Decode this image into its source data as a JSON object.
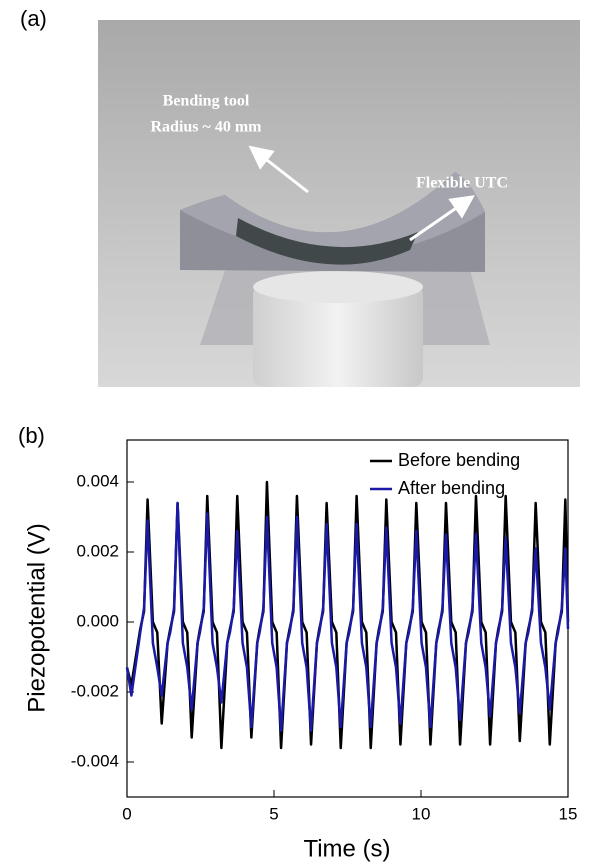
{
  "panel_a": {
    "label": "(a)",
    "annotations": [
      "Bending tool",
      "Radius ~ 40 mm",
      "Flexible UTC"
    ]
  },
  "chart_data": {
    "type": "line",
    "panel_label": "(b)",
    "x_label": "Time (s)",
    "y_label": "Piezopotential (V)",
    "xlim": [
      0,
      15
    ],
    "xticks": [
      0,
      5,
      10,
      15
    ],
    "ylim": [
      -0.005,
      0.0052
    ],
    "yticks": [
      {
        "value": 0.004,
        "label": "0.004"
      },
      {
        "value": 0.002,
        "label": "0.002"
      },
      {
        "value": 0,
        "label": "0.000"
      },
      {
        "value": -0.002,
        "label": "-0.002"
      },
      {
        "value": -0.004,
        "label": "-0.004"
      }
    ],
    "legend": "upper right",
    "x": [
      0,
      0.15,
      0.45,
      0.58,
      0.7,
      0.88,
      1.03,
      1.18,
      1.38,
      1.47,
      1.6,
      1.72,
      1.9,
      2.05,
      2.2,
      2.4,
      2.48,
      2.61,
      2.73,
      2.91,
      3.06,
      3.21,
      3.41,
      3.5,
      3.63,
      3.75,
      3.93,
      4.08,
      4.23,
      4.43,
      4.51,
      4.64,
      4.76,
      4.94,
      5.09,
      5.24,
      5.44,
      5.53,
      5.66,
      5.78,
      5.96,
      6.11,
      6.26,
      6.46,
      6.54,
      6.67,
      6.79,
      6.97,
      7.12,
      7.27,
      7.47,
      7.56,
      7.69,
      7.81,
      7.99,
      8.14,
      8.29,
      8.49,
      8.57,
      8.7,
      8.82,
      9.0,
      9.15,
      9.3,
      9.5,
      9.59,
      9.72,
      9.84,
      10.02,
      10.17,
      10.32,
      10.52,
      10.6,
      10.73,
      10.85,
      11.03,
      11.18,
      11.33,
      11.53,
      11.62,
      11.75,
      11.87,
      12.05,
      12.2,
      12.35,
      12.55,
      12.63,
      12.76,
      12.88,
      13.06,
      13.21,
      13.36,
      13.56,
      13.65,
      13.78,
      13.9,
      14.08,
      14.23,
      14.38,
      14.58,
      14.66,
      14.79,
      14.91,
      15
    ],
    "series": [
      {
        "name": "Before bending",
        "color": "#000000",
        "values": [
          -0.0013,
          -0.0018,
          -0.0002,
          0.0003,
          0.0035,
          0.0,
          -0.0003,
          -0.0029,
          -0.0006,
          -0.0002,
          0.0003,
          0.0034,
          0.0,
          -0.0003,
          -0.0033,
          -0.0006,
          -0.0002,
          0.0003,
          0.0036,
          0.0,
          -0.0003,
          -0.0036,
          -0.0006,
          -0.0002,
          0.0003,
          0.0036,
          0.0,
          -0.0003,
          -0.0033,
          -0.0006,
          -0.0002,
          0.0003,
          0.004,
          0.0,
          -0.0003,
          -0.0036,
          -0.0006,
          -0.0002,
          0.0003,
          0.0036,
          0.0,
          -0.0003,
          -0.0035,
          -0.0006,
          -0.0002,
          0.0003,
          0.0034,
          0.0,
          -0.0003,
          -0.0036,
          -0.0006,
          -0.0002,
          0.0003,
          0.0036,
          0.0,
          -0.0003,
          -0.0036,
          -0.0006,
          -0.0002,
          0.0003,
          0.0035,
          0.0,
          -0.0003,
          -0.0035,
          -0.0006,
          -0.0002,
          0.0003,
          0.0034,
          0.0,
          -0.0003,
          -0.0035,
          -0.0006,
          -0.0002,
          0.0003,
          0.0034,
          0.0,
          -0.0003,
          -0.0035,
          -0.0006,
          -0.0002,
          0.0003,
          0.0036,
          0.0,
          -0.0003,
          -0.0035,
          -0.0006,
          -0.0002,
          0.0003,
          0.0036,
          0.0,
          -0.0003,
          -0.0034,
          -0.0006,
          -0.0002,
          0.0003,
          0.0034,
          0.0,
          -0.0003,
          -0.0035,
          -0.0006,
          -0.0002,
          0.0003,
          0.0035,
          0.0
        ]
      },
      {
        "name": "After bending",
        "color": "#1a1aa6",
        "values": [
          -0.0013,
          -0.0021,
          -0.0003,
          0.0004,
          0.0029,
          -0.0006,
          -0.0013,
          -0.0021,
          -0.0006,
          -0.0003,
          0.0004,
          0.0034,
          -0.0006,
          -0.0013,
          -0.0025,
          -0.0006,
          -0.0003,
          0.0004,
          0.0031,
          -0.0006,
          -0.0013,
          -0.0023,
          -0.0006,
          -0.0003,
          0.0004,
          0.0026,
          -0.0006,
          -0.0013,
          -0.003,
          -0.0006,
          -0.0003,
          0.0004,
          0.003,
          -0.0006,
          -0.0013,
          -0.0031,
          -0.0006,
          -0.0003,
          0.0004,
          0.003,
          -0.0006,
          -0.0013,
          -0.0031,
          -0.0006,
          -0.0003,
          0.0004,
          0.0028,
          -0.0006,
          -0.0013,
          -0.003,
          -0.0006,
          -0.0003,
          0.0004,
          0.0028,
          -0.0006,
          -0.0013,
          -0.003,
          -0.0006,
          -0.0003,
          0.0004,
          0.0027,
          -0.0006,
          -0.0013,
          -0.0029,
          -0.0006,
          -0.0003,
          0.0004,
          0.0026,
          -0.0006,
          -0.0013,
          -0.003,
          -0.0006,
          -0.0003,
          0.0004,
          0.0025,
          -0.0006,
          -0.0013,
          -0.0028,
          -0.0006,
          -0.0003,
          0.0004,
          0.0025,
          -0.0006,
          -0.0013,
          -0.0027,
          -0.0006,
          -0.0003,
          0.0004,
          0.0024,
          -0.0006,
          -0.0013,
          -0.0026,
          -0.0006,
          -0.0003,
          0.0004,
          0.0021,
          -0.0006,
          -0.0013,
          -0.0025,
          -0.0006,
          -0.0003,
          0.0004,
          0.0021,
          -0.0002
        ]
      }
    ]
  }
}
